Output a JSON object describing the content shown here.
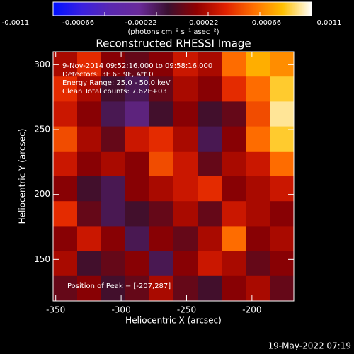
{
  "chart_data": {
    "type": "heatmap",
    "title": "Reconstructed RHESSI Image",
    "colorbar_label": "(photons cm⁻² s⁻¹ asec⁻²)",
    "colorbar_lim": [
      -0.0011,
      0.0011
    ],
    "colorbar_ticks": [
      -0.0011,
      -0.00066,
      -0.00022,
      0.00022,
      0.00066,
      0.0011
    ],
    "colors": [
      "#0010ff",
      "#3a20e0",
      "#5a28b0",
      "#6a2a9a",
      "#3a1030",
      "#900000",
      "#e02000",
      "#ff7000",
      "#ffc000",
      "#ffffff"
    ],
    "x_label": "Heliocentric X (arcsec)",
    "y_label": "Heliocentric Y (arcsec)",
    "xlim": [
      -352,
      -168
    ],
    "ylim": [
      118,
      310
    ],
    "xticks": [
      -350,
      -300,
      -250,
      -200
    ],
    "yticks": [
      150,
      200,
      250,
      300
    ],
    "annotations": [
      "9-Nov-2014 09:52:16.000 to 09:58:16.000",
      "Detectors: 3F 6F 9F, Att 0",
      "Energy Range: 25.0 - 50.0 keV",
      "Clean     Total counts: 7.62E+03"
    ],
    "peak_label": "Position of Peak = [-207,287]",
    "footer": "19-May-2022 07:19",
    "z": [
      [
        0.0002,
        0.0004,
        0.0001,
        0.0,
        0.0001,
        0.0003,
        0.0002,
        0.0006,
        0.0008,
        0.0007
      ],
      [
        0.0004,
        0.0002,
        -0.0001,
        -0.0002,
        0.0,
        0.0002,
        0.0001,
        0.0004,
        0.0006,
        0.0009
      ],
      [
        0.0003,
        0.0001,
        -0.0002,
        -0.0003,
        -0.0001,
        0.0001,
        -0.0001,
        0.0,
        0.0005,
        0.001
      ],
      [
        0.0005,
        0.0002,
        0.0,
        0.0003,
        0.0004,
        0.0002,
        -0.0002,
        0.0001,
        0.0006,
        0.0009
      ],
      [
        0.0003,
        0.0001,
        0.0002,
        0.0001,
        0.0005,
        0.0003,
        0.0,
        0.0002,
        0.0003,
        0.0006
      ],
      [
        0.0001,
        -0.0001,
        -0.0002,
        0.0001,
        0.0002,
        0.0003,
        0.0004,
        0.0001,
        0.0002,
        0.0003
      ],
      [
        0.0004,
        0.0,
        -0.0002,
        -0.0001,
        0.0,
        0.0002,
        0.0,
        0.0003,
        0.0002,
        0.0001
      ],
      [
        0.0001,
        0.0003,
        0.0001,
        -0.0002,
        0.0001,
        0.0,
        0.0002,
        0.0006,
        0.0001,
        0.0002
      ],
      [
        0.0002,
        -0.0001,
        0.0,
        0.0001,
        -0.0002,
        0.0001,
        0.0003,
        0.0002,
        0.0,
        0.0001
      ],
      [
        0.0,
        0.0001,
        -0.0001,
        0.0,
        0.0002,
        0.0,
        -0.0001,
        0.0001,
        0.0002,
        0.0
      ]
    ]
  }
}
